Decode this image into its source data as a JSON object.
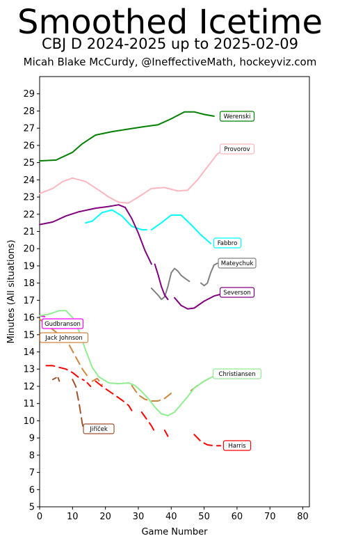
{
  "chart_data": {
    "type": "line",
    "title": "Smoothed Icetime",
    "subtitle": "CBJ D 2024-2025 up to 2025-02-09",
    "byline": "Micah Blake McCurdy, @IneffectiveMath, hockeyviz.com",
    "xlabel": "Game Number",
    "ylabel": "Minutes (All situations)",
    "xlim": [
      0,
      82
    ],
    "ylim": [
      5,
      30
    ],
    "xticks": [
      "0",
      "10",
      "20",
      "30",
      "40",
      "50",
      "60",
      "70",
      "80"
    ],
    "yticks": [
      "5",
      "6",
      "7",
      "8",
      "9",
      "10",
      "11",
      "12",
      "13",
      "14",
      "15",
      "16",
      "17",
      "18",
      "19",
      "20",
      "21",
      "22",
      "23",
      "24",
      "25",
      "26",
      "27",
      "28",
      "29"
    ],
    "grid": false,
    "series": [
      {
        "name": "Werenski",
        "color": "#008000",
        "dashed": false,
        "segments": [
          [
            [
              0,
              25.1
            ],
            [
              5,
              25.15
            ],
            [
              10,
              25.6
            ],
            [
              13,
              26.1
            ],
            [
              17,
              26.6
            ],
            [
              22,
              26.8
            ],
            [
              27,
              26.95
            ],
            [
              32,
              27.1
            ],
            [
              36,
              27.2
            ],
            [
              40,
              27.55
            ],
            [
              44,
              27.95
            ],
            [
              47,
              27.95
            ],
            [
              50,
              27.8
            ],
            [
              53,
              27.7
            ]
          ]
        ]
      },
      {
        "name": "Provorov",
        "color": "#ffb6c1",
        "dashed": false,
        "segments": [
          [
            [
              0,
              23.2
            ],
            [
              4,
              23.5
            ],
            [
              7,
              23.9
            ],
            [
              10,
              24.1
            ],
            [
              14,
              23.9
            ],
            [
              18,
              23.4
            ],
            [
              21,
              23.0
            ],
            [
              24,
              22.7
            ],
            [
              27,
              22.65
            ],
            [
              30,
              23.0
            ],
            [
              34,
              23.5
            ],
            [
              38,
              23.55
            ],
            [
              42,
              23.35
            ],
            [
              45,
              23.4
            ],
            [
              48,
              24.0
            ],
            [
              52,
              25.0
            ],
            [
              54,
              25.5
            ],
            [
              56,
              25.7
            ]
          ]
        ]
      },
      {
        "name": "Fabbro",
        "color": "#00ffff",
        "dashed": false,
        "segments": [
          [
            [
              14,
              21.5
            ],
            [
              16,
              21.6
            ],
            [
              19,
              22.1
            ],
            [
              22,
              22.25
            ],
            [
              25,
              21.9
            ],
            [
              28,
              21.3
            ],
            [
              31,
              21.1
            ],
            [
              32.5,
              21.1
            ]
          ],
          [
            [
              34,
              21.1
            ],
            [
              37,
              21.5
            ],
            [
              40,
              21.95
            ],
            [
              43,
              21.95
            ],
            [
              46,
              21.4
            ],
            [
              49,
              20.8
            ],
            [
              52,
              20.3
            ]
          ]
        ]
      },
      {
        "name": "Mateychuk",
        "color": "#808080",
        "dashed": false,
        "segments": [
          [
            [
              34,
              17.7
            ],
            [
              36,
              17.3
            ],
            [
              37,
              17.05
            ],
            [
              38,
              17.2
            ],
            [
              39,
              17.8
            ],
            [
              40,
              18.6
            ],
            [
              41,
              18.85
            ],
            [
              42,
              18.7
            ],
            [
              43,
              18.45
            ],
            [
              44,
              18.3
            ],
            [
              45.5,
              18.1
            ]
          ],
          [
            [
              49,
              18.0
            ],
            [
              50,
              17.85
            ],
            [
              51,
              18.0
            ],
            [
              52,
              18.6
            ],
            [
              53,
              19.05
            ],
            [
              54,
              19.15
            ]
          ]
        ]
      },
      {
        "name": "Severson",
        "color": "#800080",
        "dashed": false,
        "segments": [
          [
            [
              0,
              21.4
            ],
            [
              4,
              21.55
            ],
            [
              8,
              21.9
            ],
            [
              12,
              22.15
            ],
            [
              17,
              22.35
            ],
            [
              21,
              22.45
            ],
            [
              24,
              22.55
            ],
            [
              26,
              22.4
            ],
            [
              28,
              21.75
            ],
            [
              30,
              20.9
            ],
            [
              32,
              19.9
            ],
            [
              34,
              19.1
            ]
          ],
          [
            [
              35,
              19.1
            ],
            [
              36,
              18.5
            ],
            [
              37,
              17.8
            ],
            [
              38,
              17.3
            ],
            [
              39,
              17.05
            ]
          ],
          [
            [
              41,
              17.15
            ],
            [
              43,
              16.7
            ],
            [
              45,
              16.5
            ],
            [
              47,
              16.55
            ],
            [
              50,
              16.95
            ],
            [
              53,
              17.25
            ],
            [
              56,
              17.4
            ]
          ]
        ]
      },
      {
        "name": "Gudbranson",
        "color": "#ff00ff",
        "dashed": false,
        "segments": [
          [
            [
              0,
              16.1
            ],
            [
              1.5,
              16.05
            ]
          ]
        ]
      },
      {
        "name": "Jack Johnson",
        "color": "#cd853f",
        "dashed": true,
        "segments": [
          [
            [
              0,
              15.9
            ],
            [
              3,
              15.45
            ],
            [
              6,
              15.0
            ],
            [
              9,
              14.4
            ],
            [
              11,
              13.7
            ],
            [
              13,
              13.0
            ],
            [
              14.5,
              12.6
            ]
          ],
          [
            [
              16,
              12.3
            ],
            [
              17.5,
              12.45
            ],
            [
              19,
              12.1
            ]
          ],
          [
            [
              28,
              12.05
            ],
            [
              30,
              11.5
            ],
            [
              32,
              11.25
            ],
            [
              34,
              11.15
            ],
            [
              36,
              11.15
            ],
            [
              38,
              11.3
            ],
            [
              40,
              11.6
            ]
          ],
          [
            [
              46,
              11.75
            ],
            [
              48,
              12.05
            ],
            [
              50,
              12.3
            ],
            [
              52,
              12.5
            ],
            [
              54,
              12.6
            ],
            [
              56,
              12.65
            ]
          ]
        ]
      },
      {
        "name": "Christiansen",
        "color": "#90ee90",
        "dashed": false,
        "segments": [
          [
            [
              0,
              16.1
            ],
            [
              3,
              16.2
            ],
            [
              6,
              16.4
            ],
            [
              8,
              16.4
            ],
            [
              10,
              16.0
            ],
            [
              12,
              15.2
            ],
            [
              14,
              14.1
            ],
            [
              16,
              13.1
            ],
            [
              18,
              12.55
            ],
            [
              21,
              12.2
            ],
            [
              24,
              12.15
            ],
            [
              27,
              12.2
            ],
            [
              29,
              12.05
            ],
            [
              31,
              11.7
            ],
            [
              33,
              11.3
            ],
            [
              35,
              10.8
            ],
            [
              37,
              10.4
            ],
            [
              39,
              10.3
            ],
            [
              41,
              10.5
            ],
            [
              43,
              10.95
            ],
            [
              45,
              11.4
            ],
            [
              47,
              11.9
            ],
            [
              50,
              12.3
            ],
            [
              53,
              12.6
            ],
            [
              56,
              12.7
            ]
          ]
        ]
      },
      {
        "name": "Jiříček",
        "color": "#a0522d",
        "dashed": true,
        "segments": [
          [
            [
              4,
              12.4
            ],
            [
              5,
              12.5
            ]
          ],
          [
            [
              5.6,
              12.5
            ],
            [
              6,
              12.3
            ]
          ],
          [
            [
              10,
              12.4
            ],
            [
              11,
              12.0
            ],
            [
              12,
              11.0
            ],
            [
              13,
              9.8
            ],
            [
              13.4,
              9.5
            ]
          ]
        ]
      },
      {
        "name": "Harris",
        "color": "#ff0000",
        "dashed": true,
        "segments": [
          [
            [
              2,
              13.2
            ],
            [
              4,
              13.2
            ],
            [
              6,
              13.1
            ],
            [
              8,
              13.0
            ],
            [
              10,
              12.8
            ],
            [
              12,
              12.5
            ],
            [
              13.5,
              12.35
            ]
          ],
          [
            [
              14.5,
              12.2
            ],
            [
              15.5,
              12.0
            ]
          ],
          [
            [
              17,
              12.3
            ],
            [
              19,
              12.0
            ],
            [
              22,
              11.6
            ],
            [
              25,
              11.2
            ],
            [
              27,
              10.9
            ],
            [
              28,
              10.6
            ]
          ],
          [
            [
              31,
              10.5
            ],
            [
              32.5,
              10.1
            ],
            [
              34,
              9.7
            ],
            [
              35,
              9.35
            ]
          ],
          [
            [
              38,
              9.45
            ],
            [
              39,
              9.1
            ]
          ],
          [
            [
              47,
              9.2
            ],
            [
              49,
              8.8
            ],
            [
              51,
              8.6
            ],
            [
              53,
              8.55
            ],
            [
              55,
              8.55
            ]
          ]
        ]
      }
    ],
    "labels": [
      {
        "text": "Werenski",
        "color": "#008000"
      },
      {
        "text": "Provorov",
        "color": "#ffb6c1"
      },
      {
        "text": "Fabbro",
        "color": "#00ffff"
      },
      {
        "text": "Mateychuk",
        "color": "#808080"
      },
      {
        "text": "Severson",
        "color": "#800080"
      },
      {
        "text": "Gudbranson",
        "color": "#ff00ff"
      },
      {
        "text": "Jack Johnson",
        "color": "#cd853f"
      },
      {
        "text": "Christiansen",
        "color": "#90ee90"
      },
      {
        "text": "Jiříček",
        "color": "#a0522d"
      },
      {
        "text": "Harris",
        "color": "#ff0000"
      }
    ]
  }
}
